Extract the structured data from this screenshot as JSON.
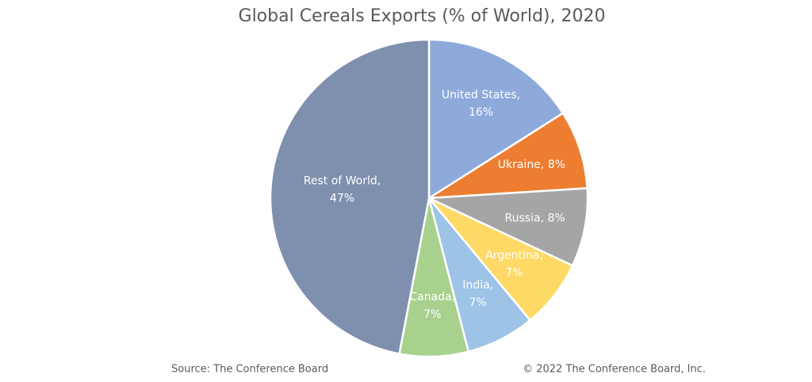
{
  "chart_data": {
    "type": "pie",
    "title": "Global Cereals Exports (% of World), 2020",
    "values": [
      16,
      8,
      8,
      7,
      7,
      7,
      47
    ],
    "value_labels": [
      "United States,\n16%",
      "Ukraine, 8%",
      "Russia, 8%",
      "Argentina,\n7%",
      "India,\n7%",
      "Canada,\n7%",
      "Rest of World,\n47%"
    ],
    "colors": [
      "#8eaadb",
      "#ed7d31",
      "#a5a5a5",
      "#ffd966",
      "#9dc3e6",
      "#a9d18e",
      "#7f8fae"
    ],
    "source": "Source: The Conference Board",
    "copyright": "© 2022 The Conference Board, Inc."
  }
}
